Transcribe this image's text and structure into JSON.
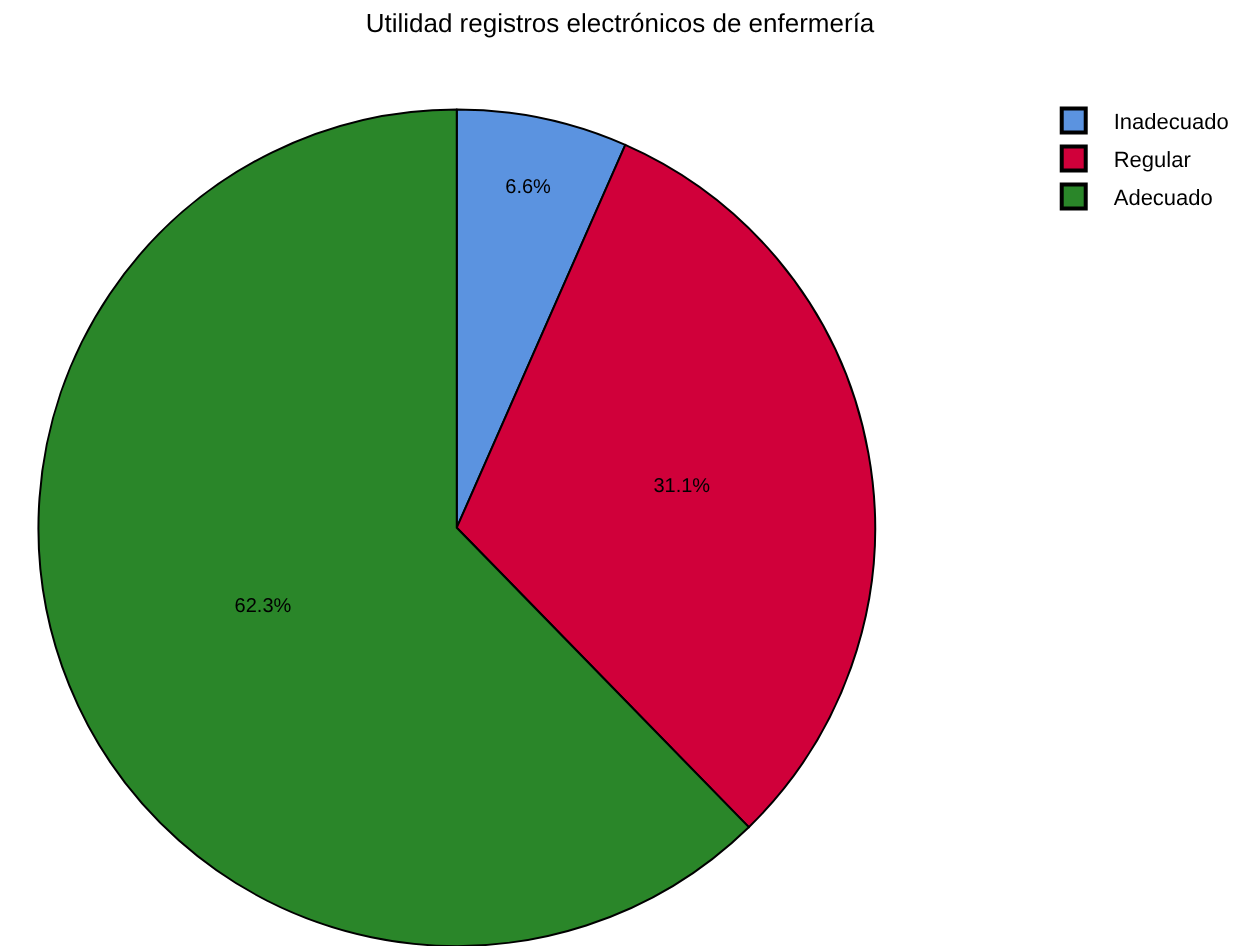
{
  "chart_data": {
    "type": "pie",
    "title": "Utilidad registros electrónicos de enfermería",
    "categories": [
      "Inadecuado",
      "Regular",
      "Adecuado"
    ],
    "values": [
      6.6,
      31.1,
      62.3
    ],
    "value_labels": [
      "6.6%",
      "31.1%",
      "62.3%"
    ],
    "colors": [
      "#5b93e0",
      "#d0003a",
      "#2a8629"
    ],
    "legend": "top right"
  }
}
